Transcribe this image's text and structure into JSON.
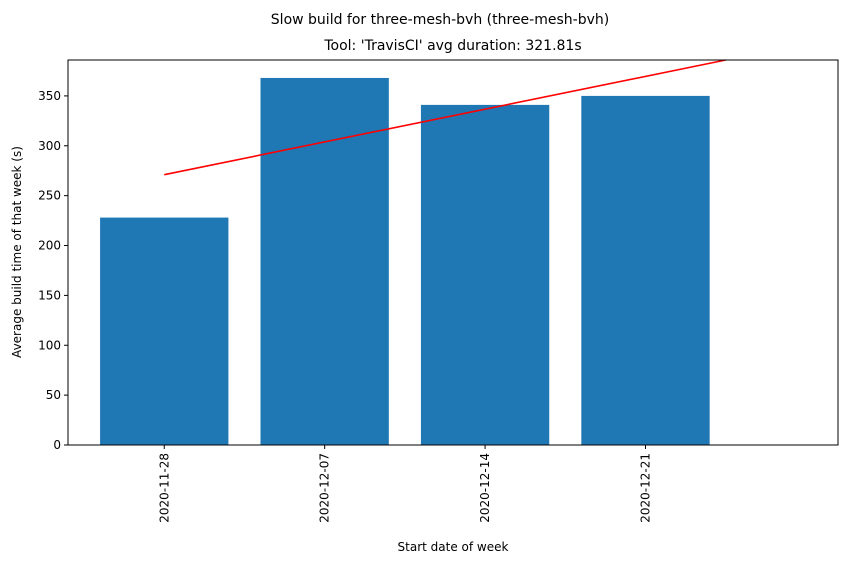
{
  "chart_data": {
    "type": "bar",
    "suptitle": "Slow build for three-mesh-bvh (three-mesh-bvh)",
    "title": "Tool: 'TravisCI' avg duration: 321.81s",
    "xlabel": "Start date of week",
    "ylabel": "Average build time of that week (s)",
    "categories": [
      "2020-11-28",
      "2020-12-07",
      "2020-12-14",
      "2020-12-21"
    ],
    "series": [
      {
        "values": [
          228,
          368,
          341,
          350
        ],
        "color": "#1f77b4"
      }
    ],
    "trend_line": {
      "color": "#ff0000",
      "start": 271,
      "end": 386
    },
    "xlim": [
      -0.6,
      4.2
    ],
    "ylim": [
      0,
      386
    ],
    "yticks": [
      0,
      50,
      100,
      150,
      200,
      250,
      300,
      350
    ],
    "grid": false,
    "legend": "none"
  }
}
